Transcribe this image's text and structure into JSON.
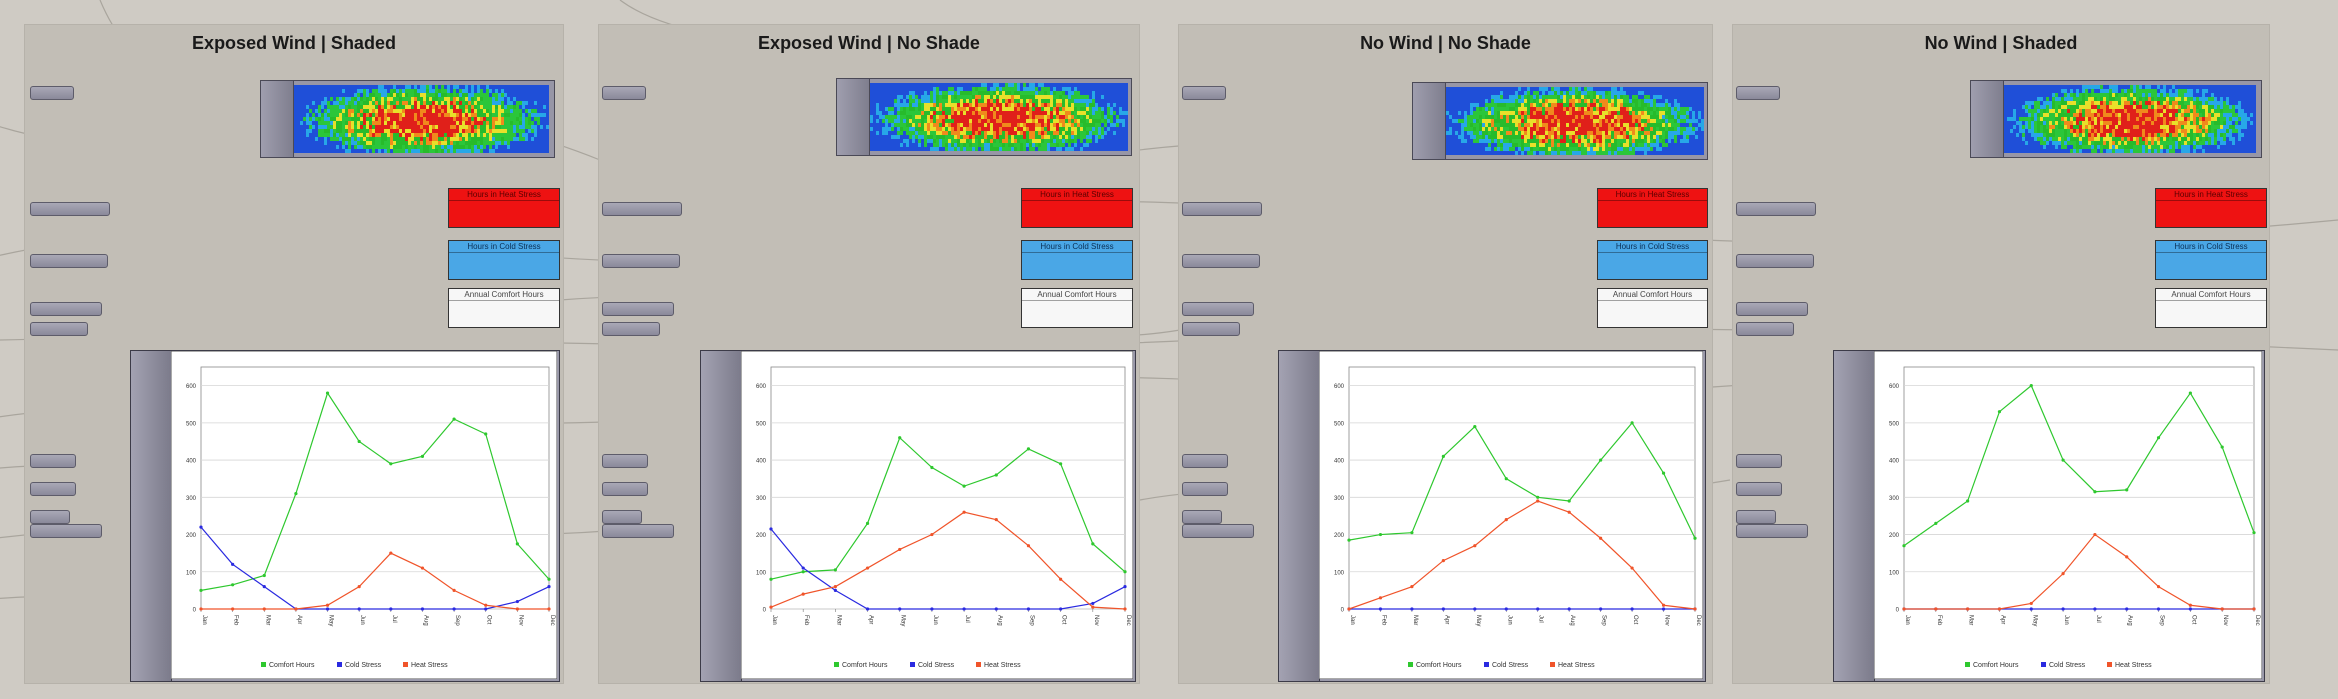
{
  "months": [
    "Jan",
    "Feb",
    "Mar",
    "Apr",
    "May",
    "Jun",
    "Jul",
    "Aug",
    "Sep",
    "Oct",
    "Nov",
    "Dec"
  ],
  "y_ticks": [
    "0",
    "100",
    "200",
    "300",
    "400",
    "500",
    "600"
  ],
  "legend": {
    "comfort": "Comfort Hours",
    "cold": "Cold Stress",
    "heat": "Heat Stress"
  },
  "colors": {
    "comfort": "#2ec82e",
    "cold": "#2a2ae0",
    "heat": "#f0542a"
  },
  "panels": {
    "heat_title": "Hours in Heat Stress",
    "cold_title": "Hours in Cold Stress",
    "comfort_title": "Annual Comfort Hours"
  },
  "groups": [
    {
      "title": "Exposed Wind | Shaded"
    },
    {
      "title": "Exposed Wind | No Shade"
    },
    {
      "title": "No Wind | No Shade"
    },
    {
      "title": "No Wind | Shaded"
    }
  ],
  "chart_data": [
    {
      "type": "line",
      "categories": [
        "Jan",
        "Feb",
        "Mar",
        "Apr",
        "May",
        "Jun",
        "Jul",
        "Aug",
        "Sep",
        "Oct",
        "Nov",
        "Dec"
      ],
      "ylim": [
        0,
        650
      ],
      "series": [
        {
          "name": "Comfort Hours",
          "values": [
            50,
            65,
            90,
            310,
            580,
            450,
            390,
            410,
            510,
            470,
            175,
            80
          ]
        },
        {
          "name": "Cold Stress",
          "values": [
            220,
            120,
            60,
            0,
            0,
            0,
            0,
            0,
            0,
            0,
            20,
            60
          ]
        },
        {
          "name": "Heat Stress",
          "values": [
            0,
            0,
            0,
            0,
            10,
            60,
            150,
            110,
            50,
            10,
            0,
            0
          ]
        }
      ]
    },
    {
      "type": "line",
      "categories": [
        "Jan",
        "Feb",
        "Mar",
        "Apr",
        "May",
        "Jun",
        "Jul",
        "Aug",
        "Sep",
        "Oct",
        "Nov",
        "Dec"
      ],
      "ylim": [
        0,
        650
      ],
      "series": [
        {
          "name": "Comfort Hours",
          "values": [
            80,
            100,
            105,
            230,
            460,
            380,
            330,
            360,
            430,
            390,
            175,
            100
          ]
        },
        {
          "name": "Cold Stress",
          "values": [
            215,
            110,
            50,
            0,
            0,
            0,
            0,
            0,
            0,
            0,
            15,
            60
          ]
        },
        {
          "name": "Heat Stress",
          "values": [
            5,
            40,
            60,
            110,
            160,
            200,
            260,
            240,
            170,
            80,
            5,
            0
          ]
        }
      ]
    },
    {
      "type": "line",
      "categories": [
        "Jan",
        "Feb",
        "Mar",
        "Apr",
        "May",
        "Jun",
        "Jul",
        "Aug",
        "Sep",
        "Oct",
        "Nov",
        "Dec"
      ],
      "ylim": [
        0,
        650
      ],
      "series": [
        {
          "name": "Comfort Hours",
          "values": [
            185,
            200,
            205,
            410,
            490,
            350,
            300,
            290,
            400,
            500,
            365,
            190
          ]
        },
        {
          "name": "Cold Stress",
          "values": [
            0,
            0,
            0,
            0,
            0,
            0,
            0,
            0,
            0,
            0,
            0,
            0
          ]
        },
        {
          "name": "Heat Stress",
          "values": [
            0,
            30,
            60,
            130,
            170,
            240,
            290,
            260,
            190,
            110,
            10,
            0
          ]
        }
      ]
    },
    {
      "type": "line",
      "categories": [
        "Jan",
        "Feb",
        "Mar",
        "Apr",
        "May",
        "Jun",
        "Jul",
        "Aug",
        "Sep",
        "Oct",
        "Nov",
        "Dec"
      ],
      "ylim": [
        0,
        650
      ],
      "series": [
        {
          "name": "Comfort Hours",
          "values": [
            170,
            230,
            290,
            530,
            600,
            400,
            315,
            320,
            460,
            580,
            435,
            205
          ]
        },
        {
          "name": "Cold Stress",
          "values": [
            0,
            0,
            0,
            0,
            0,
            0,
            0,
            0,
            0,
            0,
            0,
            0
          ]
        },
        {
          "name": "Heat Stress",
          "values": [
            0,
            0,
            0,
            0,
            15,
            95,
            200,
            140,
            60,
            10,
            0,
            0
          ]
        }
      ]
    }
  ]
}
